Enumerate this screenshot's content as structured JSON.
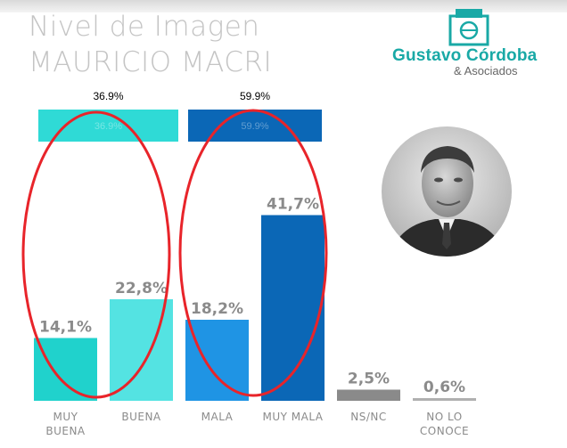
{
  "header": {
    "title_line1": "Nivel de Imagen",
    "title_line2": "MAURICIO MACRI"
  },
  "logo": {
    "name": "Gustavo Córdoba",
    "sub": "& Asociados",
    "icon": "ballot-box-icon",
    "color": "#19a9a6"
  },
  "photo": {
    "icon": "portrait-photo"
  },
  "chart_data": {
    "type": "bar",
    "categories": [
      "MUY BUENA",
      "BUENA",
      "MALA",
      "MUY MALA",
      "NS/NC",
      "NO LO CONOCE"
    ],
    "values": [
      14.1,
      22.8,
      18.2,
      41.7,
      2.5,
      0.6
    ],
    "value_labels": [
      "14,1%",
      "22,8%",
      "18,2%",
      "41,7%",
      "2,5%",
      "0,6%"
    ],
    "colors": [
      "#20d2cc",
      "#54e3e2",
      "#1f94e4",
      "#0b67b6",
      "#8a8a8a",
      "#b0b0b0"
    ],
    "ylim": [
      0,
      50
    ],
    "grid": false,
    "groups": [
      {
        "label": "36.9%",
        "ghost_label": "36.9%",
        "color": "#2fdad6",
        "categories": [
          "MUY BUENA",
          "BUENA"
        ],
        "value": 36.9
      },
      {
        "label": "59.9%",
        "ghost_label": "59.9%",
        "color": "#0b67b6",
        "categories": [
          "MALA",
          "MUY MALA"
        ],
        "value": 59.9
      }
    ],
    "annotations": [
      {
        "shape": "ellipse",
        "color": "#e8242a",
        "encloses": [
          "MUY BUENA",
          "BUENA"
        ]
      },
      {
        "shape": "ellipse",
        "color": "#e8242a",
        "encloses": [
          "MALA",
          "MUY MALA"
        ]
      }
    ]
  }
}
